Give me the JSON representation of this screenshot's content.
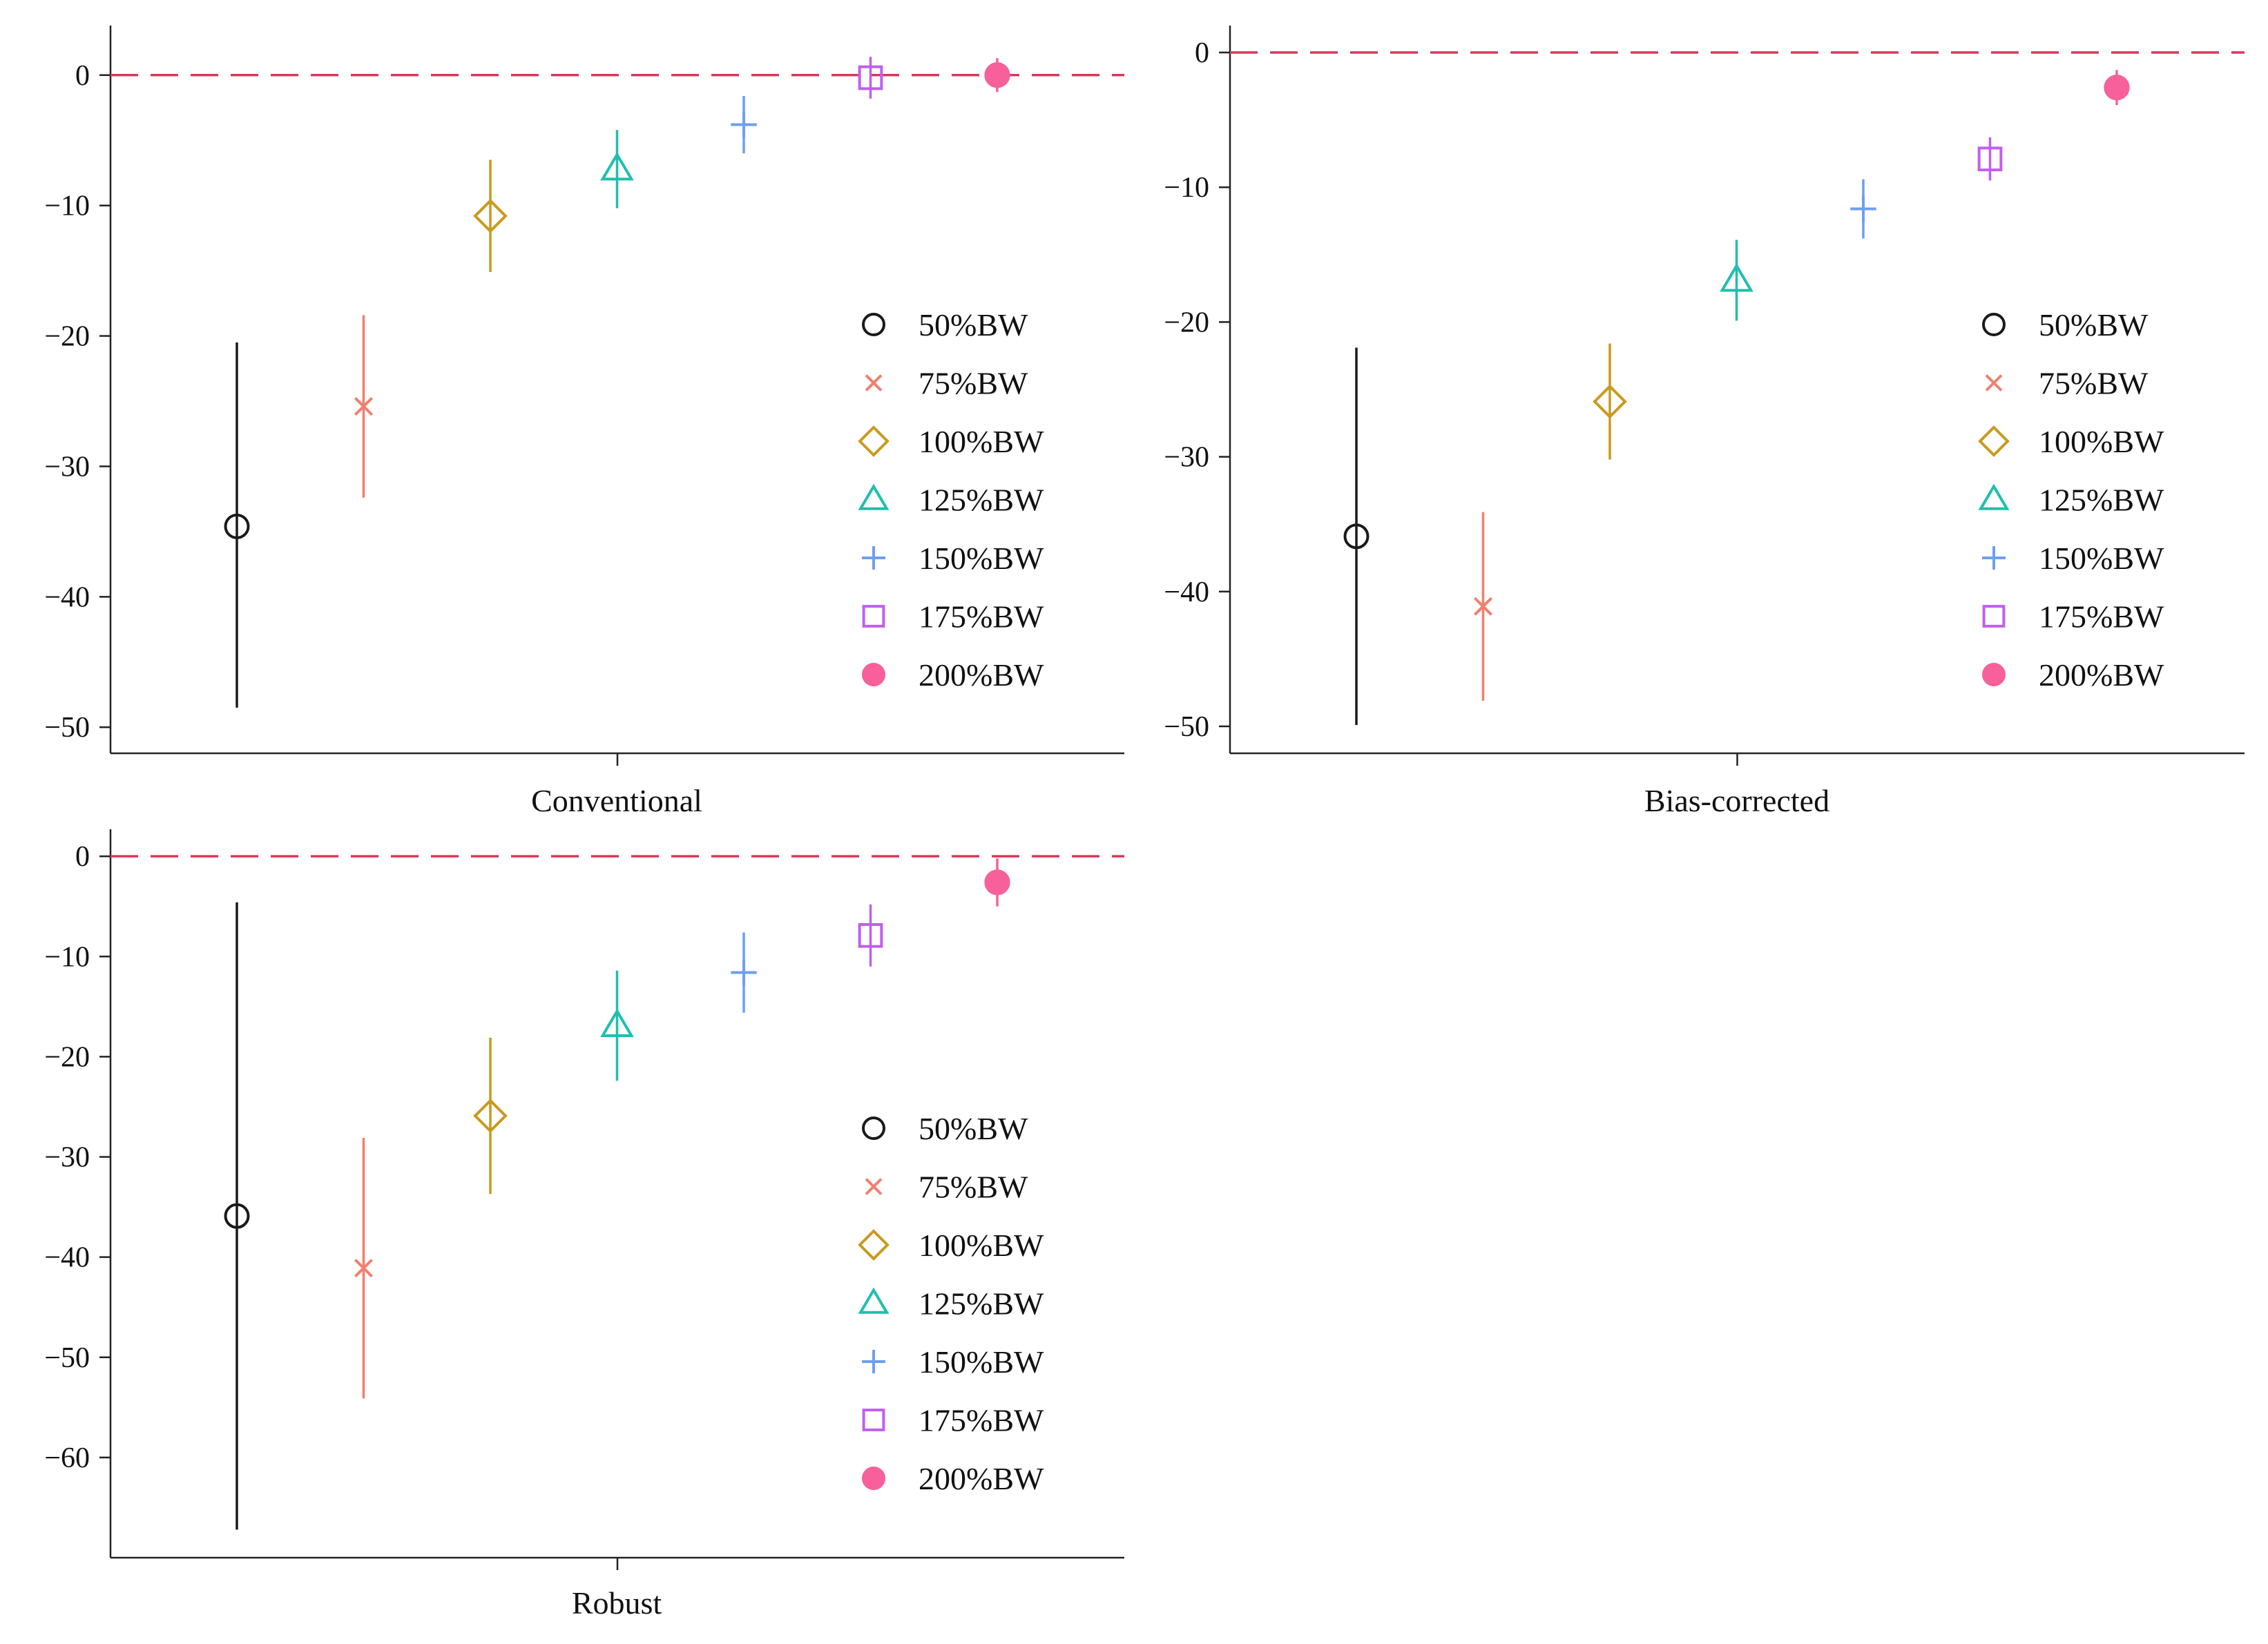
{
  "colors": {
    "background": "#ffffff",
    "axis": "#222222",
    "reference_line": "#d9385a"
  },
  "series_styles": [
    {
      "name": "50%BW",
      "marker": "circle-open",
      "color": "#1a1a1a"
    },
    {
      "name": "75%BW",
      "marker": "x",
      "color": "#f07f6f"
    },
    {
      "name": "100%BW",
      "marker": "diamond-open",
      "color": "#c99a1e"
    },
    {
      "name": "125%BW",
      "marker": "triangle-open",
      "color": "#1fbfae"
    },
    {
      "name": "150%BW",
      "marker": "plus",
      "color": "#6f9fee"
    },
    {
      "name": "175%BW",
      "marker": "square-open",
      "color": "#bf5ff0"
    },
    {
      "name": "200%BW",
      "marker": "circle-filled",
      "color": "#f7609a"
    }
  ],
  "chart_data": [
    {
      "type": "errorbar",
      "title": "",
      "xlabel": "Conventional",
      "ylabel": "",
      "ylim": [
        -52,
        3.8
      ],
      "yticks": [
        0,
        -10,
        -20,
        -30,
        -40,
        -50
      ],
      "reference_y": 0,
      "legend_position": "center-right",
      "series": [
        {
          "name": "50%BW",
          "estimate": -34.6,
          "ci": [
            -48.5,
            -20.5
          ]
        },
        {
          "name": "75%BW",
          "estimate": -25.4,
          "ci": [
            -32.4,
            -18.4
          ]
        },
        {
          "name": "100%BW",
          "estimate": -10.8,
          "ci": [
            -15.1,
            -6.5
          ]
        },
        {
          "name": "125%BW",
          "estimate": -7.2,
          "ci": [
            -10.2,
            -4.2
          ]
        },
        {
          "name": "150%BW",
          "estimate": -3.8,
          "ci": [
            -6.0,
            -1.6
          ]
        },
        {
          "name": "175%BW",
          "estimate": -0.2,
          "ci": [
            -1.8,
            1.4
          ]
        },
        {
          "name": "200%BW",
          "estimate": 0.0,
          "ci": [
            -1.3,
            1.3
          ]
        }
      ]
    },
    {
      "type": "errorbar",
      "title": "",
      "xlabel": "Bias-corrected",
      "ylabel": "",
      "ylim": [
        -52,
        2
      ],
      "yticks": [
        0,
        -10,
        -20,
        -30,
        -40,
        -50
      ],
      "reference_y": 0,
      "legend_position": "center-right",
      "series": [
        {
          "name": "50%BW",
          "estimate": -35.9,
          "ci": [
            -49.9,
            -21.9
          ]
        },
        {
          "name": "75%BW",
          "estimate": -41.1,
          "ci": [
            -48.1,
            -34.1
          ]
        },
        {
          "name": "100%BW",
          "estimate": -25.9,
          "ci": [
            -30.2,
            -21.6
          ]
        },
        {
          "name": "125%BW",
          "estimate": -16.9,
          "ci": [
            -19.9,
            -13.9
          ]
        },
        {
          "name": "150%BW",
          "estimate": -11.6,
          "ci": [
            -13.8,
            -9.4
          ]
        },
        {
          "name": "175%BW",
          "estimate": -7.9,
          "ci": [
            -9.5,
            -6.3
          ]
        },
        {
          "name": "200%BW",
          "estimate": -2.6,
          "ci": [
            -3.9,
            -1.3
          ]
        }
      ]
    },
    {
      "type": "errorbar",
      "title": "",
      "xlabel": "Robust",
      "ylabel": "",
      "ylim": [
        -70,
        2.7
      ],
      "yticks": [
        0,
        -10,
        -20,
        -30,
        -40,
        -50,
        -60
      ],
      "reference_y": 0,
      "legend_position": "center-right",
      "series": [
        {
          "name": "50%BW",
          "estimate": -35.9,
          "ci": [
            -67.2,
            -4.6
          ]
        },
        {
          "name": "75%BW",
          "estimate": -41.1,
          "ci": [
            -54.1,
            -28.1
          ]
        },
        {
          "name": "100%BW",
          "estimate": -25.9,
          "ci": [
            -33.7,
            -18.1
          ]
        },
        {
          "name": "125%BW",
          "estimate": -16.9,
          "ci": [
            -22.4,
            -11.4
          ]
        },
        {
          "name": "150%BW",
          "estimate": -11.6,
          "ci": [
            -15.6,
            -7.6
          ]
        },
        {
          "name": "175%BW",
          "estimate": -7.9,
          "ci": [
            -11.0,
            -4.8
          ]
        },
        {
          "name": "200%BW",
          "estimate": -2.6,
          "ci": [
            -5.0,
            -0.2
          ]
        }
      ]
    }
  ]
}
